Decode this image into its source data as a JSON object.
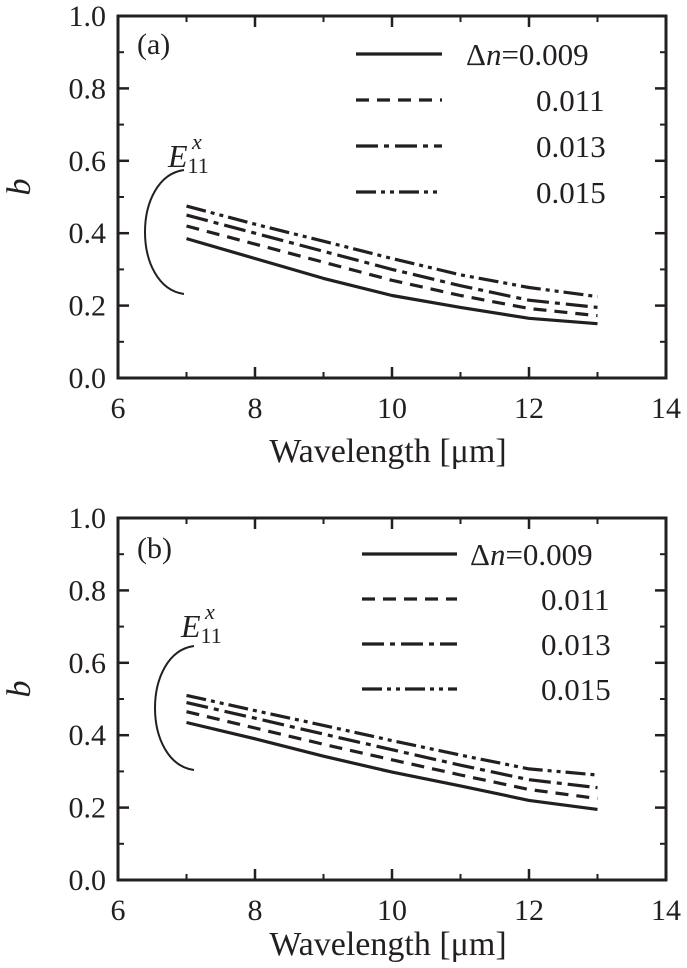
{
  "colors": {
    "ink": "#231f20",
    "background": "#ffffff"
  },
  "chart_data": [
    {
      "type": "line",
      "panel_label": "(a)",
      "xlabel": "Wavelength [μm]",
      "ylabel": "b",
      "xlim": [
        6,
        14
      ],
      "ylim": [
        0.0,
        1.0
      ],
      "x_ticks": [
        "6",
        "8",
        "10",
        "12",
        "14"
      ],
      "y_ticks": [
        "0.0",
        "0.2",
        "0.4",
        "0.6",
        "0.8",
        "1.0"
      ],
      "legend_prefix": "Δn=",
      "mode_label": {
        "base": "E",
        "superscript": "x",
        "subscript": "11"
      },
      "x": [
        7,
        8,
        9,
        10,
        11,
        12,
        13
      ],
      "series": [
        {
          "name": "0.009",
          "style": "solid",
          "values": [
            0.385,
            0.33,
            0.275,
            0.228,
            0.195,
            0.165,
            0.15
          ]
        },
        {
          "name": "0.011",
          "style": "dash",
          "values": [
            0.42,
            0.37,
            0.32,
            0.27,
            0.228,
            0.192,
            0.172
          ]
        },
        {
          "name": "0.013",
          "style": "dashdot",
          "values": [
            0.45,
            0.4,
            0.35,
            0.3,
            0.255,
            0.215,
            0.195
          ]
        },
        {
          "name": "0.015",
          "style": "dashdotdot",
          "values": [
            0.475,
            0.425,
            0.378,
            0.33,
            0.285,
            0.25,
            0.225
          ]
        }
      ]
    },
    {
      "type": "line",
      "panel_label": "(b)",
      "xlabel": "Wavelength [μm]",
      "ylabel": "b",
      "xlim": [
        6,
        14
      ],
      "ylim": [
        0.0,
        1.0
      ],
      "x_ticks": [
        "6",
        "8",
        "10",
        "12",
        "14"
      ],
      "y_ticks": [
        "0.0",
        "0.2",
        "0.4",
        "0.6",
        "0.8",
        "1.0"
      ],
      "legend_prefix": "Δn=",
      "mode_label": {
        "base": "E",
        "superscript": "x",
        "subscript": "11"
      },
      "x": [
        7,
        8,
        9,
        10,
        11,
        12,
        13
      ],
      "series": [
        {
          "name": "0.009",
          "style": "solid",
          "values": [
            0.435,
            0.39,
            0.342,
            0.298,
            0.26,
            0.22,
            0.195
          ]
        },
        {
          "name": "0.011",
          "style": "dash",
          "values": [
            0.465,
            0.42,
            0.375,
            0.332,
            0.29,
            0.25,
            0.225
          ]
        },
        {
          "name": "0.013",
          "style": "dashdot",
          "values": [
            0.49,
            0.447,
            0.403,
            0.36,
            0.317,
            0.277,
            0.255
          ]
        },
        {
          "name": "0.015",
          "style": "dashdotdot",
          "values": [
            0.51,
            0.468,
            0.427,
            0.385,
            0.345,
            0.307,
            0.29
          ]
        }
      ]
    }
  ]
}
